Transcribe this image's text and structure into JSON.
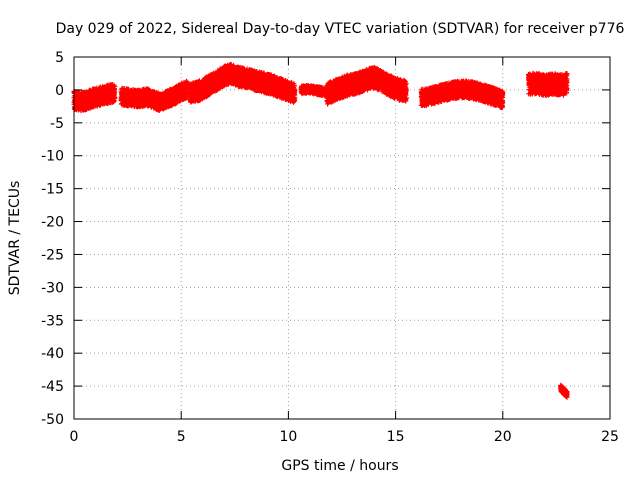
{
  "chart_data": {
    "type": "scatter",
    "title": "Day 029 of 2022, Sidereal Day-to-day VTEC variation (SDTVAR) for receiver p776",
    "xlabel": "GPS time / hours",
    "ylabel": "SDTVAR / TECUs",
    "xlim": [
      0,
      25
    ],
    "ylim": [
      -50,
      5
    ],
    "x_ticks": [
      0,
      5,
      10,
      15,
      20,
      25
    ],
    "y_ticks": [
      5,
      0,
      -5,
      -10,
      -15,
      -20,
      -25,
      -30,
      -35,
      -40,
      -45,
      -50
    ],
    "grid": true,
    "marker": "plus",
    "series": [
      {
        "name": "SDTVAR",
        "color": "#ff0000",
        "segments": [
          {
            "x": [
              0.0,
              0.3,
              0.6,
              0.9,
              1.2,
              1.5,
              1.9
            ],
            "y": [
              -1.5,
              -1.8,
              -1.6,
              -1.2,
              -1.0,
              -0.7,
              -0.5
            ],
            "band": 1.4
          },
          {
            "x": [
              2.2,
              2.6,
              3.0,
              3.4,
              3.7,
              4.0,
              4.3,
              4.7,
              5.0,
              5.3
            ],
            "y": [
              -1.0,
              -1.2,
              -1.3,
              -1.1,
              -1.5,
              -1.9,
              -1.4,
              -0.9,
              -0.3,
              0.1
            ],
            "band": 1.3
          },
          {
            "x": [
              5.4,
              5.8,
              6.2,
              6.6,
              7.0,
              7.3,
              7.7,
              8.2,
              8.7,
              9.2,
              9.6,
              10.0,
              10.3
            ],
            "y": [
              -0.5,
              -0.2,
              0.5,
              1.3,
              2.1,
              2.4,
              2.0,
              1.6,
              1.2,
              0.8,
              0.3,
              -0.2,
              -0.5
            ],
            "band": 1.5
          },
          {
            "x": [
              10.6,
              11.0,
              11.5,
              11.8
            ],
            "y": [
              0.0,
              0.1,
              -0.2,
              -0.3
            ],
            "band": 0.6
          },
          {
            "x": [
              11.8,
              12.2,
              12.7,
              13.2,
              13.6,
              14.0,
              14.4,
              14.8,
              15.2,
              15.5
            ],
            "y": [
              -0.6,
              0.0,
              0.6,
              1.0,
              1.5,
              1.9,
              1.2,
              0.5,
              0.0,
              -0.2
            ],
            "band": 1.6
          },
          {
            "x": [
              16.2,
              16.6,
              17.0,
              17.5,
              18.0,
              18.5,
              19.0,
              19.5,
              20.0
            ],
            "y": [
              -1.2,
              -1.0,
              -0.6,
              -0.2,
              0.1,
              0.0,
              -0.4,
              -0.9,
              -1.5
            ],
            "band": 1.3
          },
          {
            "x": [
              21.2,
              21.6,
              22.0,
              22.4,
              22.8,
              23.0
            ],
            "y": [
              0.9,
              1.0,
              0.7,
              0.9,
              0.7,
              1.0
            ],
            "band": 1.6
          },
          {
            "x": [
              22.7,
              22.8,
              22.9,
              23.0
            ],
            "y": [
              -45.3,
              -45.6,
              -46.0,
              -46.2
            ],
            "band": 0.5
          }
        ]
      }
    ]
  }
}
